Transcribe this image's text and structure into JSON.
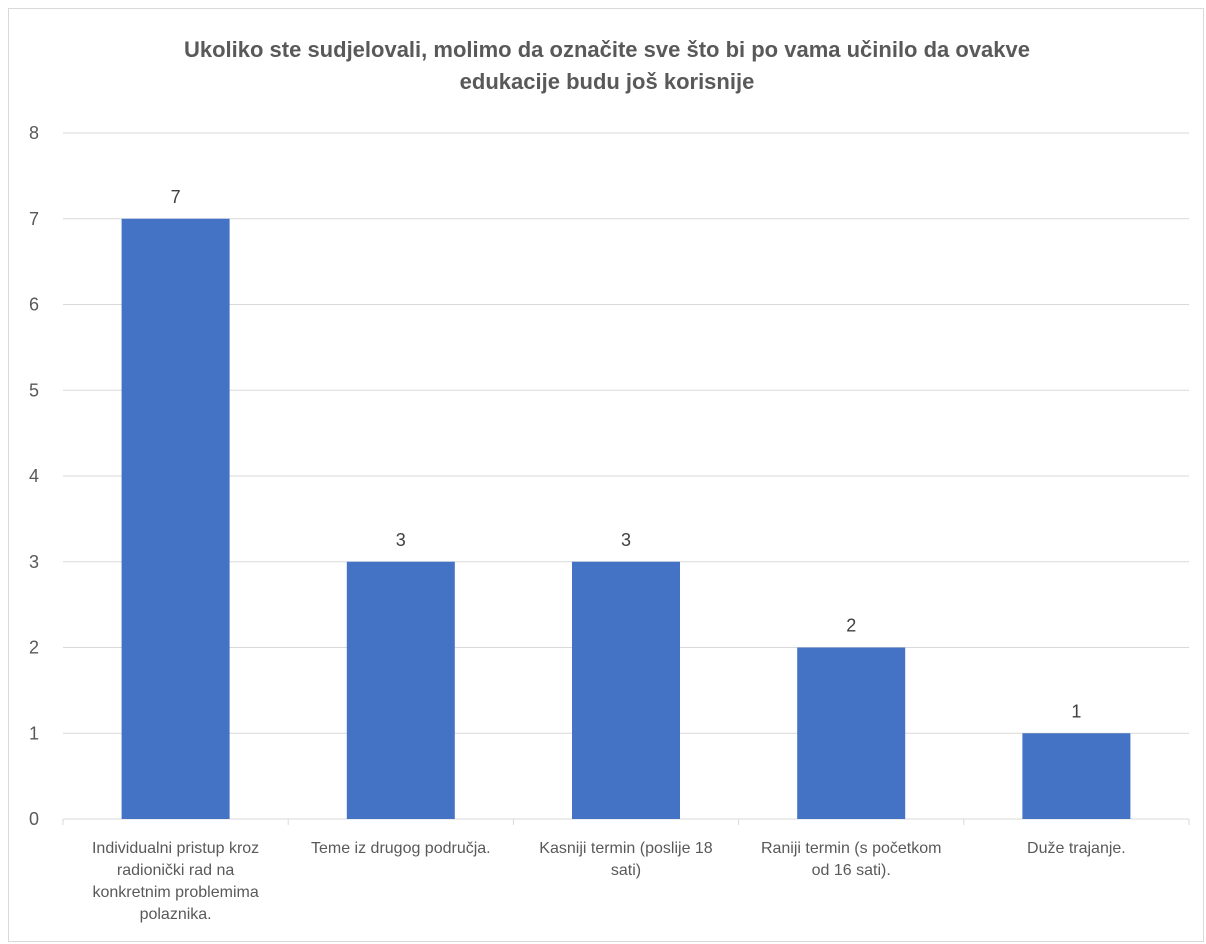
{
  "chart_data": {
    "type": "bar",
    "title_lines": [
      "Ukoliko ste sudjelovali, molimo da označite sve što bi po vama učinilo da ovakve",
      "edukacije budu još korisnije"
    ],
    "categories": [
      [
        "Individualni pristup kroz",
        "radionički rad na",
        "konkretnim problemima",
        "polaznika."
      ],
      [
        "Teme iz drugog područja."
      ],
      [
        "Kasniji termin (poslije 18",
        "sati)"
      ],
      [
        "Raniji termin (s početkom",
        "od 16 sati)."
      ],
      [
        "Duže trajanje."
      ]
    ],
    "values": [
      7,
      3,
      3,
      2,
      1
    ],
    "data_labels": [
      "7",
      "3",
      "3",
      "2",
      "1"
    ],
    "yticks": [
      "0",
      "1",
      "2",
      "3",
      "4",
      "5",
      "6",
      "7",
      "8"
    ],
    "ylim": [
      0,
      8
    ],
    "grid": true,
    "legend": "none",
    "bar_color": "#4472C4",
    "grid_color": "#d9d9d9"
  }
}
